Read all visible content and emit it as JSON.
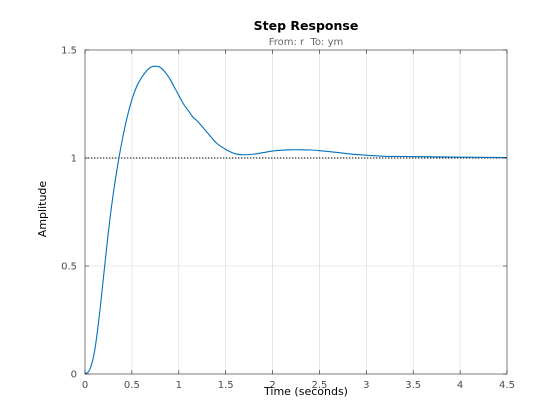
{
  "chart_data": {
    "type": "line",
    "title": "Step Response",
    "subtitle": "From: r  To: ym",
    "xlabel": "Time (seconds)",
    "ylabel": "Amplitude",
    "xlim": [
      0,
      4.5
    ],
    "ylim": [
      0,
      1.5
    ],
    "xticks": [
      0,
      0.5,
      1,
      1.5,
      2,
      2.5,
      3,
      3.5,
      4,
      4.5
    ],
    "xtick_labels": [
      "0",
      "0.5",
      "1",
      "1.5",
      "2",
      "2.5",
      "3",
      "3.5",
      "4",
      "4.5"
    ],
    "yticks": [
      0,
      0.5,
      1,
      1.5
    ],
    "ytick_labels": [
      "0",
      "0.5",
      "1",
      "1.5"
    ],
    "grid": true,
    "reference_line": {
      "y": 1,
      "style": "dotted",
      "color": "#000000"
    },
    "series": [
      {
        "color": "#0072bd",
        "x": [
          0,
          0.05,
          0.1,
          0.15,
          0.2,
          0.25,
          0.3,
          0.35,
          0.4,
          0.45,
          0.5,
          0.55,
          0.6,
          0.65,
          0.7,
          0.75,
          0.8,
          0.85,
          0.9,
          0.95,
          1.0,
          1.05,
          1.1,
          1.15,
          1.2,
          1.3,
          1.4,
          1.5,
          1.6,
          1.7,
          1.8,
          1.9,
          2.0,
          2.1,
          2.2,
          2.3,
          2.4,
          2.5,
          2.6,
          2.7,
          2.8,
          2.9,
          3.0,
          3.2,
          3.4,
          3.6,
          3.8,
          4.0,
          4.2,
          4.5
        ],
        "y": [
          0,
          0.02,
          0.1,
          0.26,
          0.46,
          0.66,
          0.83,
          0.97,
          1.09,
          1.19,
          1.27,
          1.33,
          1.37,
          1.4,
          1.42,
          1.425,
          1.42,
          1.4,
          1.37,
          1.33,
          1.29,
          1.25,
          1.22,
          1.19,
          1.17,
          1.12,
          1.07,
          1.04,
          1.02,
          1.015,
          1.018,
          1.025,
          1.032,
          1.036,
          1.038,
          1.038,
          1.037,
          1.034,
          1.03,
          1.025,
          1.02,
          1.016,
          1.013,
          1.008,
          1.007,
          1.006,
          1.005,
          1.004,
          1.003,
          1.002
        ]
      }
    ]
  }
}
